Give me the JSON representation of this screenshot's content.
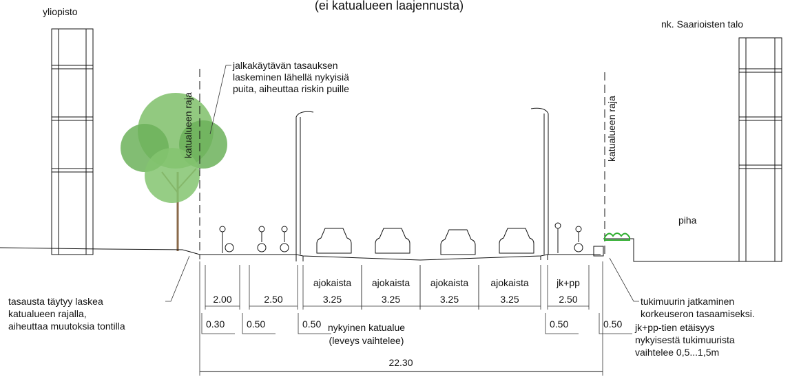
{
  "header": {
    "title": "(ei katualueen laajennusta)"
  },
  "buildings": {
    "left": "yliopisto",
    "right": "nk. Saarioisten talo"
  },
  "boundary_labels": [
    "katualueen raja",
    "katualueen raja"
  ],
  "notes": {
    "tree": [
      "jalkakäytävän tasauksen",
      "laskeminen lähellä nykyisiä",
      "puita, aiheuttaa riskin puille"
    ],
    "left": [
      "tasausta täytyy laskea",
      "katualueen rajalla,",
      "aiheuttaa muutoksia tontilla"
    ],
    "right": [
      "tukimuurin jatkaminen",
      "korkeuseron tasaamiseksi.",
      "jk+pp-tien etäisyys",
      "nykyisestä tukimuurista",
      "vaihtelee 0,5...1,5m"
    ]
  },
  "yard": "piha",
  "segments": [
    {
      "width": "2.00"
    },
    {
      "width": "2.50"
    },
    {
      "label": "ajokaista",
      "width": "3.25"
    },
    {
      "label": "ajokaista",
      "width": "3.25"
    },
    {
      "label": "ajokaista",
      "width": "3.25"
    },
    {
      "label": "ajokaista",
      "width": "3.25"
    },
    {
      "label": "jk+pp",
      "width": "2.50"
    }
  ],
  "offsets": [
    "0.30",
    "0.50",
    "0.50",
    "0.50",
    "0.50"
  ],
  "street": {
    "label": "nykyinen katualue",
    "note": "(leveys vaihtelee)",
    "total": "22.30"
  }
}
